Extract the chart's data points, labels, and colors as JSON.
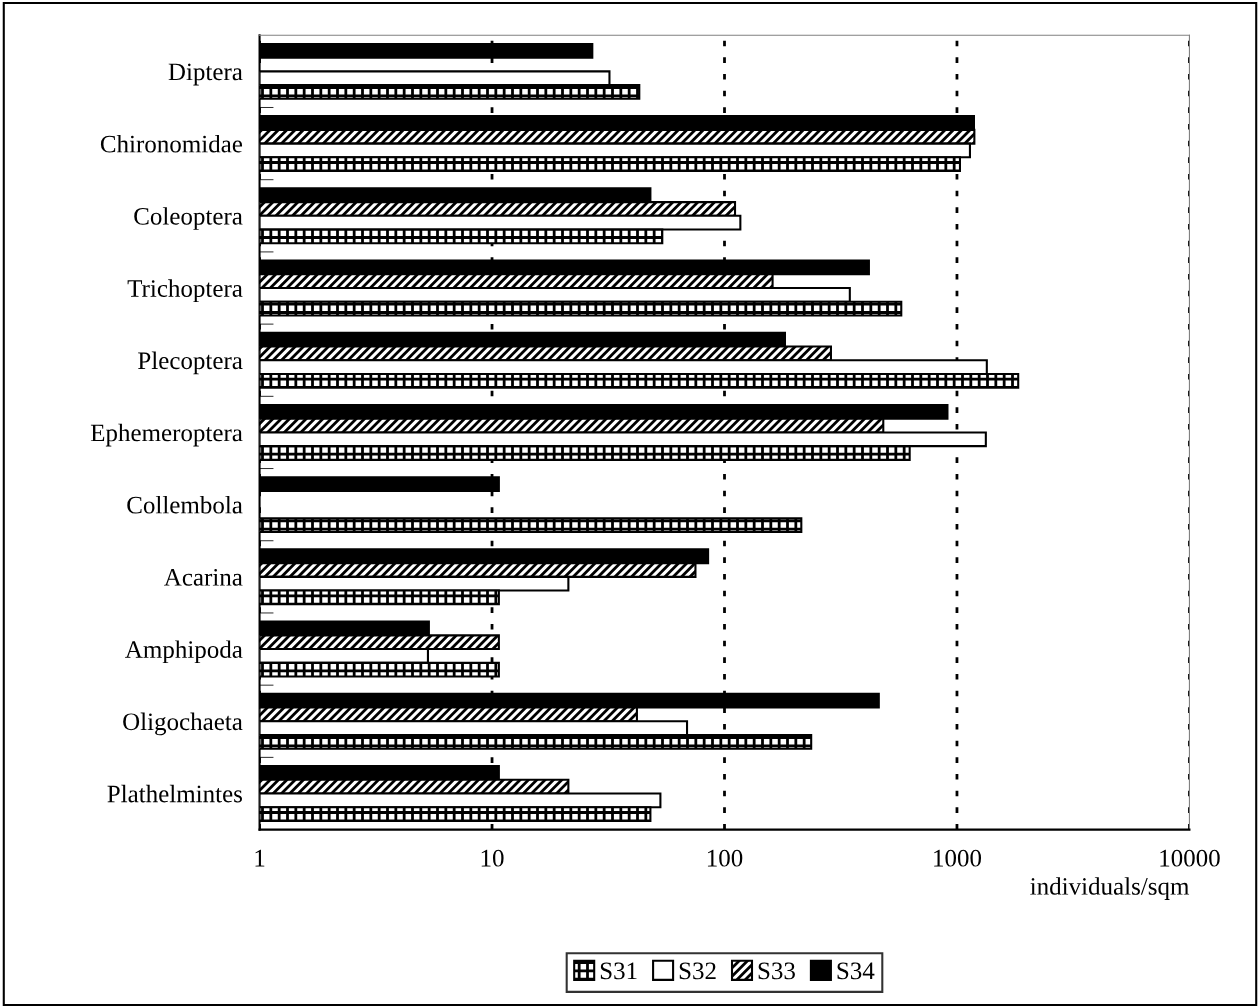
{
  "chart_data": {
    "type": "bar",
    "orientation": "horizontal",
    "xlabel": "individuals/sqm",
    "log": "x",
    "categories": [
      "Diptera",
      "Chironomidae",
      "Coleoptera",
      "Trichoptera",
      "Plecoptera",
      "Ephemeroptera",
      "Collembola",
      "Acarina",
      "Amphipoda",
      "Oligochaeta",
      "Plathelmintes"
    ],
    "series": [
      {
        "name": "S34",
        "color": "#000000",
        "values": [
          27,
          1183,
          48,
          418,
          182,
          910,
          10.7,
          85,
          5.35,
          461,
          10.7
        ]
      },
      {
        "name": "S33",
        "color": "#000000",
        "values": [
          null,
          1188,
          111,
          161,
          287,
          482,
          null,
          75,
          10.7,
          42,
          21.3
        ]
      },
      {
        "name": "S32",
        "color": "#ffffff",
        "values": [
          32,
          1137,
          117,
          346,
          1344,
          1331,
          null,
          21.3,
          5.3,
          69,
          53
        ]
      },
      {
        "name": "S31",
        "color": "#000000",
        "values": [
          43,
          1030,
          54,
          576,
          1834,
          626,
          214,
          10.7,
          10.7,
          236,
          48
        ]
      }
    ],
    "xlim": [
      1,
      10000
    ],
    "xticks": [
      1,
      10,
      100,
      1000,
      10000
    ],
    "grid": "x",
    "legend": "bottom"
  }
}
